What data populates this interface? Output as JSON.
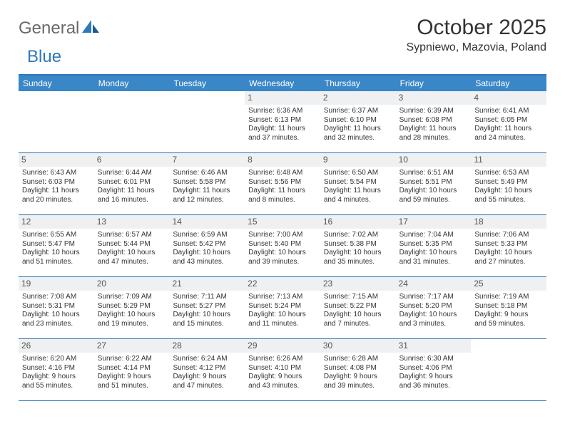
{
  "logo": {
    "text1": "General",
    "text2": "Blue"
  },
  "title": "October 2025",
  "location": "Sypniewo, Mazovia, Poland",
  "colors": {
    "accent": "#3a87c7",
    "border": "#2f78b9",
    "daynum_bg": "#eef0f1",
    "text": "#333333",
    "logo_gray": "#6a6a6a"
  },
  "day_headers": [
    "Sunday",
    "Monday",
    "Tuesday",
    "Wednesday",
    "Thursday",
    "Friday",
    "Saturday"
  ],
  "weeks": [
    [
      {
        "empty": true
      },
      {
        "empty": true
      },
      {
        "empty": true
      },
      {
        "day": "1",
        "sunrise": "Sunrise: 6:36 AM",
        "sunset": "Sunset: 6:13 PM",
        "dl1": "Daylight: 11 hours",
        "dl2": "and 37 minutes."
      },
      {
        "day": "2",
        "sunrise": "Sunrise: 6:37 AM",
        "sunset": "Sunset: 6:10 PM",
        "dl1": "Daylight: 11 hours",
        "dl2": "and 32 minutes."
      },
      {
        "day": "3",
        "sunrise": "Sunrise: 6:39 AM",
        "sunset": "Sunset: 6:08 PM",
        "dl1": "Daylight: 11 hours",
        "dl2": "and 28 minutes."
      },
      {
        "day": "4",
        "sunrise": "Sunrise: 6:41 AM",
        "sunset": "Sunset: 6:05 PM",
        "dl1": "Daylight: 11 hours",
        "dl2": "and 24 minutes."
      }
    ],
    [
      {
        "day": "5",
        "sunrise": "Sunrise: 6:43 AM",
        "sunset": "Sunset: 6:03 PM",
        "dl1": "Daylight: 11 hours",
        "dl2": "and 20 minutes."
      },
      {
        "day": "6",
        "sunrise": "Sunrise: 6:44 AM",
        "sunset": "Sunset: 6:01 PM",
        "dl1": "Daylight: 11 hours",
        "dl2": "and 16 minutes."
      },
      {
        "day": "7",
        "sunrise": "Sunrise: 6:46 AM",
        "sunset": "Sunset: 5:58 PM",
        "dl1": "Daylight: 11 hours",
        "dl2": "and 12 minutes."
      },
      {
        "day": "8",
        "sunrise": "Sunrise: 6:48 AM",
        "sunset": "Sunset: 5:56 PM",
        "dl1": "Daylight: 11 hours",
        "dl2": "and 8 minutes."
      },
      {
        "day": "9",
        "sunrise": "Sunrise: 6:50 AM",
        "sunset": "Sunset: 5:54 PM",
        "dl1": "Daylight: 11 hours",
        "dl2": "and 4 minutes."
      },
      {
        "day": "10",
        "sunrise": "Sunrise: 6:51 AM",
        "sunset": "Sunset: 5:51 PM",
        "dl1": "Daylight: 10 hours",
        "dl2": "and 59 minutes."
      },
      {
        "day": "11",
        "sunrise": "Sunrise: 6:53 AM",
        "sunset": "Sunset: 5:49 PM",
        "dl1": "Daylight: 10 hours",
        "dl2": "and 55 minutes."
      }
    ],
    [
      {
        "day": "12",
        "sunrise": "Sunrise: 6:55 AM",
        "sunset": "Sunset: 5:47 PM",
        "dl1": "Daylight: 10 hours",
        "dl2": "and 51 minutes."
      },
      {
        "day": "13",
        "sunrise": "Sunrise: 6:57 AM",
        "sunset": "Sunset: 5:44 PM",
        "dl1": "Daylight: 10 hours",
        "dl2": "and 47 minutes."
      },
      {
        "day": "14",
        "sunrise": "Sunrise: 6:59 AM",
        "sunset": "Sunset: 5:42 PM",
        "dl1": "Daylight: 10 hours",
        "dl2": "and 43 minutes."
      },
      {
        "day": "15",
        "sunrise": "Sunrise: 7:00 AM",
        "sunset": "Sunset: 5:40 PM",
        "dl1": "Daylight: 10 hours",
        "dl2": "and 39 minutes."
      },
      {
        "day": "16",
        "sunrise": "Sunrise: 7:02 AM",
        "sunset": "Sunset: 5:38 PM",
        "dl1": "Daylight: 10 hours",
        "dl2": "and 35 minutes."
      },
      {
        "day": "17",
        "sunrise": "Sunrise: 7:04 AM",
        "sunset": "Sunset: 5:35 PM",
        "dl1": "Daylight: 10 hours",
        "dl2": "and 31 minutes."
      },
      {
        "day": "18",
        "sunrise": "Sunrise: 7:06 AM",
        "sunset": "Sunset: 5:33 PM",
        "dl1": "Daylight: 10 hours",
        "dl2": "and 27 minutes."
      }
    ],
    [
      {
        "day": "19",
        "sunrise": "Sunrise: 7:08 AM",
        "sunset": "Sunset: 5:31 PM",
        "dl1": "Daylight: 10 hours",
        "dl2": "and 23 minutes."
      },
      {
        "day": "20",
        "sunrise": "Sunrise: 7:09 AM",
        "sunset": "Sunset: 5:29 PM",
        "dl1": "Daylight: 10 hours",
        "dl2": "and 19 minutes."
      },
      {
        "day": "21",
        "sunrise": "Sunrise: 7:11 AM",
        "sunset": "Sunset: 5:27 PM",
        "dl1": "Daylight: 10 hours",
        "dl2": "and 15 minutes."
      },
      {
        "day": "22",
        "sunrise": "Sunrise: 7:13 AM",
        "sunset": "Sunset: 5:24 PM",
        "dl1": "Daylight: 10 hours",
        "dl2": "and 11 minutes."
      },
      {
        "day": "23",
        "sunrise": "Sunrise: 7:15 AM",
        "sunset": "Sunset: 5:22 PM",
        "dl1": "Daylight: 10 hours",
        "dl2": "and 7 minutes."
      },
      {
        "day": "24",
        "sunrise": "Sunrise: 7:17 AM",
        "sunset": "Sunset: 5:20 PM",
        "dl1": "Daylight: 10 hours",
        "dl2": "and 3 minutes."
      },
      {
        "day": "25",
        "sunrise": "Sunrise: 7:19 AM",
        "sunset": "Sunset: 5:18 PM",
        "dl1": "Daylight: 9 hours",
        "dl2": "and 59 minutes."
      }
    ],
    [
      {
        "day": "26",
        "sunrise": "Sunrise: 6:20 AM",
        "sunset": "Sunset: 4:16 PM",
        "dl1": "Daylight: 9 hours",
        "dl2": "and 55 minutes."
      },
      {
        "day": "27",
        "sunrise": "Sunrise: 6:22 AM",
        "sunset": "Sunset: 4:14 PM",
        "dl1": "Daylight: 9 hours",
        "dl2": "and 51 minutes."
      },
      {
        "day": "28",
        "sunrise": "Sunrise: 6:24 AM",
        "sunset": "Sunset: 4:12 PM",
        "dl1": "Daylight: 9 hours",
        "dl2": "and 47 minutes."
      },
      {
        "day": "29",
        "sunrise": "Sunrise: 6:26 AM",
        "sunset": "Sunset: 4:10 PM",
        "dl1": "Daylight: 9 hours",
        "dl2": "and 43 minutes."
      },
      {
        "day": "30",
        "sunrise": "Sunrise: 6:28 AM",
        "sunset": "Sunset: 4:08 PM",
        "dl1": "Daylight: 9 hours",
        "dl2": "and 39 minutes."
      },
      {
        "day": "31",
        "sunrise": "Sunrise: 6:30 AM",
        "sunset": "Sunset: 4:06 PM",
        "dl1": "Daylight: 9 hours",
        "dl2": "and 36 minutes."
      },
      {
        "empty": true
      }
    ]
  ]
}
